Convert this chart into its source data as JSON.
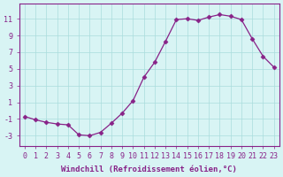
{
  "x": [
    0,
    1,
    2,
    3,
    4,
    5,
    6,
    7,
    8,
    9,
    10,
    11,
    12,
    13,
    14,
    15,
    16,
    17,
    18,
    19,
    20,
    21,
    22,
    23
  ],
  "y": [
    -0.7,
    -1.1,
    -1.4,
    -1.6,
    -1.7,
    -2.9,
    -3.0,
    -2.6,
    -1.5,
    -0.3,
    1.2,
    4.0,
    5.8,
    8.3,
    10.9,
    11.0,
    10.8,
    11.2,
    11.5,
    11.3,
    10.9,
    8.6,
    6.5,
    5.2
  ],
  "line_color": "#882288",
  "marker": "D",
  "marker_size": 2.5,
  "bg_color": "#d8f4f4",
  "grid_color": "#aadddd",
  "axis_color": "#882288",
  "xlabel": "Windchill (Refroidissement éolien,°C)",
  "ylabel_ticks": [
    -3,
    -1,
    1,
    3,
    5,
    7,
    9,
    11
  ],
  "xlim": [
    -0.5,
    23.5
  ],
  "ylim": [
    -4.2,
    12.8
  ],
  "xlabel_fontsize": 6.5,
  "tick_fontsize": 6.0
}
